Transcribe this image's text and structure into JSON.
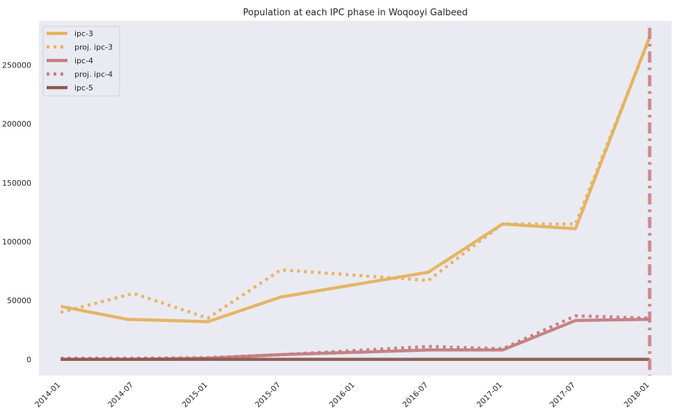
{
  "chart_data": {
    "type": "line",
    "title": "Population at each IPC phase in Woqooyi Galbeed",
    "xlabel": "",
    "ylabel": "",
    "grid": false,
    "legend_position": "top-left",
    "x_range": [
      "2013-11-08",
      "2018-02-25"
    ],
    "ylim": [
      -13700,
      287500
    ],
    "x_ticks": [
      "2014-01",
      "2014-07",
      "2015-01",
      "2015-07",
      "2016-01",
      "2016-07",
      "2017-01",
      "2017-07",
      "2018-01"
    ],
    "y_ticks": [
      0,
      50000,
      100000,
      150000,
      200000,
      250000
    ],
    "series": [
      {
        "name": "ipc-3",
        "style": "solid",
        "color": "#e5b25d",
        "x": [
          "2014-01-01",
          "2014-06-15",
          "2015-01-01",
          "2015-07-01",
          "2016-07-01",
          "2017-01-01",
          "2017-07-01",
          "2018-01-01"
        ],
        "y": [
          45000,
          34000,
          32000,
          53000,
          74000,
          115000,
          111000,
          274000
        ]
      },
      {
        "name": "proj. ipc-3",
        "style": "dotted",
        "color": "#e5b25d",
        "x": [
          "2014-01-01",
          "2014-07-01",
          "2015-01-01",
          "2015-07-01",
          "2016-07-01",
          "2017-01-01",
          "2017-07-01",
          "2018-01-01"
        ],
        "y": [
          40000,
          56000,
          35000,
          76000,
          67000,
          115000,
          115000,
          273000
        ]
      },
      {
        "name": "ipc-4",
        "style": "solid",
        "color": "#c47d80",
        "x": [
          "2014-01-01",
          "2014-07-01",
          "2015-01-01",
          "2015-07-01",
          "2016-07-01",
          "2017-01-01",
          "2017-07-01",
          "2018-01-01"
        ],
        "y": [
          0,
          0,
          1000,
          4000,
          8000,
          8000,
          33000,
          34000
        ]
      },
      {
        "name": "proj. ipc-4",
        "style": "dotted",
        "color": "#c47d80",
        "x": [
          "2014-01-01",
          "2014-07-01",
          "2015-01-01",
          "2015-07-01",
          "2016-07-01",
          "2017-01-01",
          "2017-07-01",
          "2018-01-01"
        ],
        "y": [
          1000,
          1000,
          1500,
          4000,
          11000,
          9000,
          37000,
          35000
        ]
      },
      {
        "name": "ipc-5",
        "style": "solid",
        "color": "#8b5a4f",
        "x": [
          "2014-01-01",
          "2014-07-01",
          "2015-01-01",
          "2015-07-01",
          "2016-01-01",
          "2016-07-01",
          "2017-01-01",
          "2017-07-01",
          "2018-01-01"
        ],
        "y": [
          0,
          0,
          0,
          0,
          0,
          0,
          0,
          0,
          0
        ]
      }
    ],
    "vertical_markers": [
      {
        "x": "2018-01-01",
        "style": "dashdot",
        "color": "#c47d80"
      }
    ]
  }
}
